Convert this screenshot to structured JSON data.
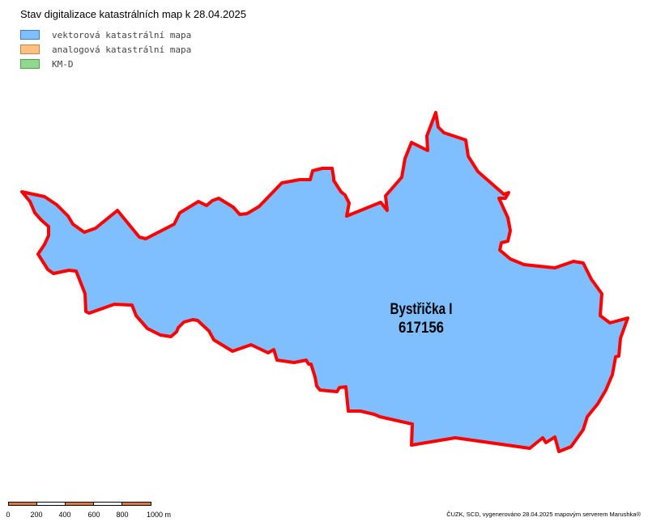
{
  "map": {
    "title": "Stav digitalizace katastrálních map k 28.04.2025",
    "legend": [
      {
        "label": "vektorová katastrální mapa",
        "fill": "#80bfff",
        "border": "#3a7fc0"
      },
      {
        "label": "analogová katastrální mapa",
        "fill": "#ffc080",
        "border": "#d08040"
      },
      {
        "label": "KM-D",
        "fill": "#90d890",
        "border": "#50a050"
      }
    ],
    "area": {
      "name": "Bystřička I",
      "code": "617156",
      "fill": "#80bfff",
      "boundary_color": "#ff0000",
      "digitization_status": "vektorová katastrální mapa"
    },
    "scale_bar": {
      "ticks": [
        "0",
        "200",
        "400",
        "600",
        "800",
        "1000 m"
      ],
      "colors": [
        "#e07a3a",
        "#ffffff",
        "#e07a3a",
        "#ffffff",
        "#e07a3a"
      ]
    },
    "attribution": "ČUZK, SCD, vygenerováno 28.04.2025 mapovým serverem Marushka®"
  }
}
